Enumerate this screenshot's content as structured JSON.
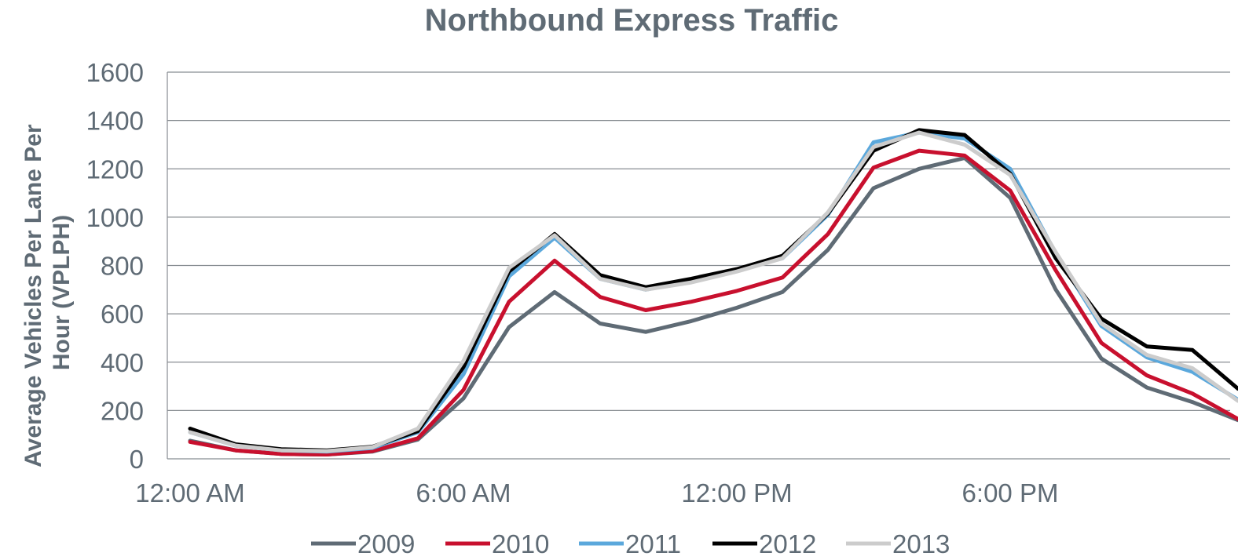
{
  "chart_data": {
    "type": "line",
    "title": "Northbound Express Traffic",
    "ylabel": "Average Vehicles Per Lane Per Hour (VPLPH)",
    "ylabel_lines": [
      "Average Vehicles Per Lane Per",
      "Hour (VPLPH)"
    ],
    "xlabel": "",
    "ylim": [
      0,
      1600
    ],
    "yticks": [
      0,
      200,
      400,
      600,
      800,
      1000,
      1200,
      1400,
      1600
    ],
    "xtick_labels": [
      {
        "hour": 0,
        "label": "12:00 AM"
      },
      {
        "hour": 6,
        "label": "6:00 AM"
      },
      {
        "hour": 12,
        "label": "12:00 PM"
      },
      {
        "hour": 18,
        "label": "6:00 PM"
      }
    ],
    "x": [
      0,
      1,
      2,
      3,
      4,
      5,
      6,
      7,
      8,
      9,
      10,
      11,
      12,
      13,
      14,
      15,
      16,
      17,
      18,
      19,
      20,
      21,
      22,
      23
    ],
    "grid": true,
    "legend_position": "bottom",
    "series": [
      {
        "name": "2009",
        "color": "#5f6b75",
        "values": [
          75,
          35,
          20,
          18,
          30,
          80,
          250,
          545,
          690,
          560,
          525,
          570,
          625,
          690,
          865,
          1120,
          1200,
          1245,
          1080,
          700,
          415,
          295,
          235,
          160
        ]
      },
      {
        "name": "2010",
        "color": "#c8102e",
        "values": [
          70,
          35,
          20,
          18,
          32,
          85,
          285,
          650,
          820,
          670,
          615,
          650,
          695,
          750,
          930,
          1205,
          1275,
          1255,
          1110,
          780,
          480,
          345,
          270,
          165
        ]
      },
      {
        "name": "2011",
        "color": "#5ba8dc",
        "values": [
          110,
          55,
          35,
          30,
          45,
          110,
          350,
          755,
          915,
          745,
          700,
          735,
          780,
          830,
          1010,
          1310,
          1350,
          1325,
          1200,
          850,
          550,
          420,
          360,
          245
        ]
      },
      {
        "name": "2012",
        "color": "#000000",
        "values": [
          125,
          60,
          40,
          35,
          50,
          115,
          380,
          775,
          930,
          760,
          710,
          745,
          785,
          840,
          1015,
          1275,
          1360,
          1340,
          1180,
          830,
          580,
          465,
          450,
          290
        ]
      },
      {
        "name": "2013",
        "color": "#cccccc",
        "values": [
          110,
          55,
          35,
          32,
          48,
          125,
          405,
          790,
          925,
          745,
          700,
          730,
          775,
          830,
          1020,
          1290,
          1350,
          1300,
          1175,
          855,
          560,
          430,
          375,
          240
        ]
      }
    ]
  }
}
